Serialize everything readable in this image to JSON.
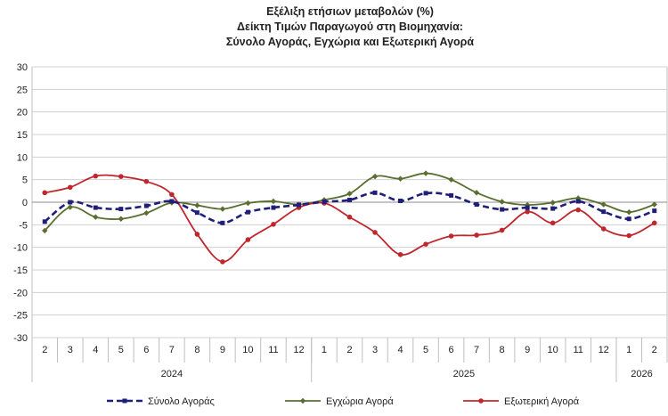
{
  "chart_data": {
    "type": "line",
    "title": [
      "Εξέλιξη ετήσιων μεταβολών (%)",
      "Δείκτη Τιμών Παραγωγού στη Βιομηχανία:",
      "Σύνολο Αγοράς, Εγχώρια και Εξωτερική Αγορά"
    ],
    "categories": [
      "2",
      "3",
      "4",
      "5",
      "6",
      "7",
      "8",
      "9",
      "10",
      "11",
      "12",
      "1",
      "2",
      "3",
      "4",
      "5",
      "6",
      "7",
      "8",
      "9",
      "10",
      "11",
      "12",
      "1",
      "2"
    ],
    "year_groups": [
      {
        "label": "2024",
        "start": 0,
        "end": 10
      },
      {
        "label": "2025",
        "start": 11,
        "end": 22
      },
      {
        "label": "2026",
        "start": 23,
        "end": 24
      }
    ],
    "ylim": [
      -30,
      30
    ],
    "yticks": [
      30,
      25,
      20,
      15,
      10,
      5,
      0,
      -5,
      -10,
      -15,
      -20,
      -25,
      -30
    ],
    "grid": true,
    "legend_position": "bottom",
    "series": [
      {
        "name": "Σύνολο Αγοράς",
        "color": "#1f1f7a",
        "style": "dashed",
        "marker": "square",
        "values": [
          -4.3,
          0.0,
          -1.2,
          -1.5,
          -0.8,
          0.2,
          -2.3,
          -4.6,
          -2.2,
          -1.2,
          -0.6,
          0.1,
          0.5,
          2.1,
          0.3,
          2.0,
          1.5,
          -0.5,
          -1.6,
          -1.2,
          -1.4,
          0.2,
          -2.1,
          -3.7,
          -1.9
        ]
      },
      {
        "name": "Εγχώρια Αγορά",
        "color": "#5a6e30",
        "style": "solid",
        "marker": "diamond",
        "values": [
          -6.3,
          -1.1,
          -3.3,
          -3.7,
          -2.4,
          -0.1,
          -0.7,
          -1.5,
          -0.2,
          0.2,
          -0.5,
          0.5,
          1.9,
          5.7,
          5.2,
          6.4,
          5.0,
          2.1,
          0.1,
          -0.6,
          -0.1,
          0.9,
          -0.5,
          -2.2,
          -0.5
        ]
      },
      {
        "name": "Εξωτερική Αγορά",
        "color": "#c0272d",
        "style": "solid",
        "marker": "circle",
        "values": [
          2.1,
          3.3,
          5.8,
          5.7,
          4.6,
          1.7,
          -7.1,
          -13.2,
          -8.3,
          -4.9,
          -1.2,
          -0.2,
          -3.3,
          -6.7,
          -11.6,
          -9.3,
          -7.5,
          -7.3,
          -6.2,
          -2.1,
          -4.6,
          -1.7,
          -5.9,
          -7.4,
          -4.6
        ]
      }
    ]
  }
}
